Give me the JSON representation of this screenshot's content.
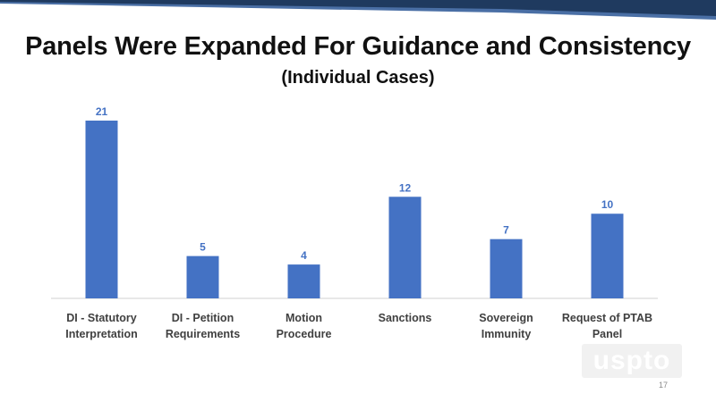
{
  "slide": {
    "title": "Panels Were Expanded For Guidance and Consistency",
    "subtitle": "(Individual Cases)",
    "logo_text": "uspto",
    "page_number": "17"
  },
  "colors": {
    "bar": "#4472c4",
    "value_label": "#4472c4",
    "category_label": "#404040",
    "axis": "#d0d0d0",
    "band_dark": "#1f3a5f",
    "band_light": "#4a6fa5"
  },
  "chart_data": {
    "type": "bar",
    "title": "Panels Were Expanded For Guidance and Consistency",
    "subtitle": "(Individual Cases)",
    "categories": [
      [
        "DI  - Statutory",
        "Interpretation"
      ],
      [
        "DI  - Petition",
        "Requirements"
      ],
      [
        "Motion",
        "Procedure"
      ],
      [
        "Sanctions"
      ],
      [
        "Sovereign",
        "Immunity"
      ],
      [
        "Request of PTAB",
        "Panel"
      ]
    ],
    "values": [
      21,
      5,
      4,
      12,
      7,
      10
    ],
    "ylim": [
      0,
      21
    ],
    "xlabel": "",
    "ylabel": "",
    "grid": false,
    "data_labels": true
  }
}
